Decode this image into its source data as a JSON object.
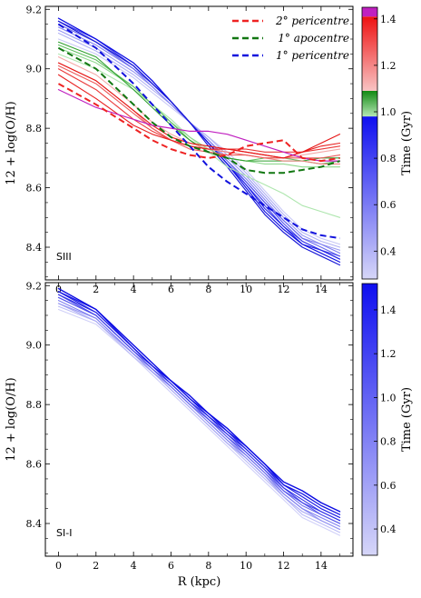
{
  "chart_data": [
    {
      "type": "line",
      "panel_label": "SIII",
      "ylabel": "12 + log(O/H)",
      "xlabel": "",
      "xlim": [
        -0.7,
        15.7
      ],
      "ylim": [
        8.29,
        9.21
      ],
      "x_ticks": [
        0,
        2,
        4,
        6,
        8,
        10,
        12,
        14
      ],
      "y_ticks": [
        8.4,
        8.6,
        8.8,
        9.0,
        9.2
      ],
      "x": [
        0,
        2,
        4,
        5,
        6,
        7,
        8,
        9,
        10,
        11,
        12,
        13,
        14,
        15
      ],
      "legend": {
        "placement": "top-right",
        "entries": [
          {
            "label": "2° pericentre",
            "color": "#ee2222"
          },
          {
            "label": "1° apocentre",
            "color": "#117711"
          },
          {
            "label": "1° pericentre",
            "color": "#1111dd"
          }
        ]
      },
      "colorbar": {
        "label": "Time (Gyr)",
        "ticks": [
          0.4,
          0.6,
          0.8,
          1.0,
          1.2,
          1.4
        ],
        "range": [
          0.28,
          1.45
        ],
        "segments": [
          {
            "from": 0.28,
            "to": 0.98,
            "from_color": "#d6d6f8",
            "to_color": "#0f0ff0"
          },
          {
            "from": 0.98,
            "to": 1.09,
            "from_color": "#b4e6b4",
            "to_color": "#118a11"
          },
          {
            "from": 1.09,
            "to": 1.41,
            "from_color": "#f8c4c4",
            "to_color": "#ee1111"
          },
          {
            "from": 1.41,
            "to": 1.45,
            "from_color": "#c020c0",
            "to_color": "#c020c0"
          }
        ]
      },
      "series": [
        {
          "color": "#c8c8f6",
          "width": 1.1,
          "values": [
            9.1,
            9.05,
            8.97,
            8.92,
            8.87,
            8.82,
            8.77,
            8.72,
            8.66,
            8.59,
            8.52,
            8.46,
            8.43,
            8.41
          ]
        },
        {
          "color": "#b0b0f4",
          "width": 1.1,
          "values": [
            9.12,
            9.06,
            8.98,
            8.93,
            8.88,
            8.82,
            8.77,
            8.71,
            8.65,
            8.58,
            8.51,
            8.45,
            8.42,
            8.4
          ]
        },
        {
          "color": "#9898f2",
          "width": 1.1,
          "values": [
            9.13,
            9.07,
            8.99,
            8.94,
            8.88,
            8.82,
            8.76,
            8.7,
            8.64,
            8.57,
            8.5,
            8.44,
            8.41,
            8.39
          ]
        },
        {
          "color": "#8080f0",
          "width": 1.1,
          "values": [
            9.14,
            9.08,
            9.0,
            8.94,
            8.88,
            8.82,
            8.76,
            8.69,
            8.63,
            8.56,
            8.49,
            8.43,
            8.41,
            8.38
          ]
        },
        {
          "color": "#6868ee",
          "width": 1.1,
          "values": [
            9.15,
            9.09,
            9.0,
            8.95,
            8.89,
            8.82,
            8.75,
            8.69,
            8.62,
            8.55,
            8.49,
            8.43,
            8.4,
            8.37
          ]
        },
        {
          "color": "#5050ec",
          "width": 1.1,
          "values": [
            9.16,
            9.09,
            9.01,
            8.95,
            8.89,
            8.82,
            8.75,
            8.68,
            8.62,
            8.55,
            8.48,
            8.42,
            8.39,
            8.37
          ]
        },
        {
          "color": "#3838ea",
          "width": 1.1,
          "values": [
            9.16,
            9.1,
            9.01,
            8.95,
            8.89,
            8.82,
            8.75,
            8.68,
            8.61,
            8.54,
            8.47,
            8.42,
            8.39,
            8.36
          ]
        },
        {
          "color": "#2020e8",
          "width": 1.1,
          "values": [
            9.17,
            9.1,
            9.02,
            8.96,
            8.89,
            8.82,
            8.75,
            8.68,
            8.61,
            8.53,
            8.47,
            8.41,
            8.39,
            8.36
          ]
        },
        {
          "color": "#1010e4",
          "width": 1.2,
          "values": [
            9.17,
            9.1,
            9.02,
            8.96,
            8.89,
            8.82,
            8.75,
            8.68,
            8.6,
            8.52,
            8.46,
            8.41,
            8.38,
            8.35
          ]
        },
        {
          "color": "#1a1ad8",
          "width": 1.2,
          "values": [
            9.16,
            9.09,
            9.01,
            8.95,
            8.89,
            8.82,
            8.74,
            8.67,
            8.59,
            8.51,
            8.45,
            8.4,
            8.37,
            8.34
          ]
        },
        {
          "color": "#aee6ae",
          "width": 1.1,
          "values": [
            9.05,
            9.0,
            8.93,
            8.88,
            8.83,
            8.77,
            8.72,
            8.67,
            8.64,
            8.61,
            8.58,
            8.54,
            8.52,
            8.5
          ]
        },
        {
          "color": "#8ed88e",
          "width": 1.1,
          "values": [
            9.07,
            9.02,
            8.94,
            8.88,
            8.82,
            8.77,
            8.73,
            8.7,
            8.69,
            8.68,
            8.68,
            8.67,
            8.67,
            8.67
          ]
        },
        {
          "color": "#60c060",
          "width": 1.1,
          "values": [
            9.08,
            9.03,
            8.94,
            8.88,
            8.82,
            8.76,
            8.72,
            8.7,
            8.69,
            8.7,
            8.7,
            8.69,
            8.68,
            8.69
          ]
        },
        {
          "color": "#30a030",
          "width": 1.1,
          "values": [
            9.09,
            9.04,
            8.93,
            8.87,
            8.81,
            8.76,
            8.72,
            8.7,
            8.69,
            8.69,
            8.69,
            8.69,
            8.7,
            8.7
          ]
        },
        {
          "color": "#f4a8a8",
          "width": 1.1,
          "values": [
            9.04,
            8.98,
            8.88,
            8.82,
            8.78,
            8.75,
            8.73,
            8.72,
            8.71,
            8.7,
            8.7,
            8.71,
            8.72,
            8.73
          ]
        },
        {
          "color": "#f08080",
          "width": 1.1,
          "values": [
            9.02,
            8.96,
            8.86,
            8.8,
            8.76,
            8.74,
            8.73,
            8.72,
            8.71,
            8.7,
            8.69,
            8.69,
            8.68,
            8.68
          ]
        },
        {
          "color": "#ec5a5a",
          "width": 1.1,
          "values": [
            9.01,
            8.95,
            8.85,
            8.8,
            8.76,
            8.73,
            8.72,
            8.71,
            8.71,
            8.7,
            8.7,
            8.7,
            8.7,
            8.71
          ]
        },
        {
          "color": "#ea3a3a",
          "width": 1.1,
          "values": [
            9.0,
            8.93,
            8.83,
            8.79,
            8.76,
            8.74,
            8.73,
            8.73,
            8.73,
            8.72,
            8.72,
            8.72,
            8.73,
            8.74
          ]
        },
        {
          "color": "#e82020",
          "width": 1.1,
          "values": [
            8.98,
            8.9,
            8.81,
            8.78,
            8.76,
            8.74,
            8.73,
            8.73,
            8.72,
            8.71,
            8.7,
            8.72,
            8.74,
            8.75
          ]
        },
        {
          "color": "#e61414",
          "width": 1.1,
          "values": [
            9.02,
            8.96,
            8.86,
            8.81,
            8.77,
            8.75,
            8.74,
            8.73,
            8.72,
            8.71,
            8.7,
            8.72,
            8.75,
            8.78
          ]
        },
        {
          "color": "#c020c0",
          "width": 1.2,
          "values": [
            8.93,
            8.87,
            8.83,
            8.81,
            8.8,
            8.79,
            8.79,
            8.78,
            8.76,
            8.74,
            8.72,
            8.7,
            8.69,
            8.69
          ]
        },
        {
          "color": "#1111dd",
          "width": 2.0,
          "dashed": true,
          "values": [
            9.15,
            9.07,
            8.95,
            8.88,
            8.81,
            8.74,
            8.67,
            8.62,
            8.58,
            8.54,
            8.5,
            8.46,
            8.44,
            8.43
          ]
        },
        {
          "color": "#117711",
          "width": 2.0,
          "dashed": true,
          "values": [
            9.07,
            9.0,
            8.88,
            8.82,
            8.77,
            8.74,
            8.72,
            8.7,
            8.66,
            8.65,
            8.65,
            8.66,
            8.67,
            8.69
          ]
        },
        {
          "color": "#ee2222",
          "width": 2.0,
          "dashed": true,
          "values": [
            8.95,
            8.88,
            8.8,
            8.76,
            8.73,
            8.71,
            8.7,
            8.71,
            8.74,
            8.75,
            8.76,
            8.7,
            8.69,
            8.7
          ]
        }
      ]
    },
    {
      "type": "line",
      "panel_label": "SI-I",
      "ylabel": "12 + log(O/H)",
      "xlabel": "R (kpc)",
      "xlim": [
        -0.7,
        15.7
      ],
      "ylim": [
        8.29,
        9.21
      ],
      "x_ticks": [
        0,
        2,
        4,
        6,
        8,
        10,
        12,
        14
      ],
      "y_ticks": [
        8.4,
        8.6,
        8.8,
        9.0,
        9.2
      ],
      "x": [
        0,
        2,
        4,
        5,
        6,
        7,
        8,
        9,
        10,
        11,
        12,
        13,
        14,
        15
      ],
      "colorbar": {
        "label": "Time (Gyr)",
        "ticks": [
          0.4,
          0.6,
          0.8,
          1.0,
          1.2,
          1.4
        ],
        "range": [
          0.28,
          1.52
        ],
        "segments": [
          {
            "from": 0.28,
            "to": 1.52,
            "from_color": "#d6d6f8",
            "to_color": "#0f0ff0"
          }
        ]
      },
      "series": [
        {
          "color": "#d0d0f8",
          "width": 1.1,
          "values": [
            9.12,
            9.07,
            8.96,
            8.9,
            8.84,
            8.78,
            8.72,
            8.66,
            8.6,
            8.54,
            8.48,
            8.42,
            8.39,
            8.36
          ]
        },
        {
          "color": "#bcbcf6",
          "width": 1.1,
          "values": [
            9.13,
            9.08,
            8.96,
            8.91,
            8.85,
            8.79,
            8.73,
            8.67,
            8.61,
            8.55,
            8.49,
            8.43,
            8.4,
            8.37
          ]
        },
        {
          "color": "#a8a8f4",
          "width": 1.1,
          "values": [
            9.14,
            9.08,
            8.97,
            8.91,
            8.85,
            8.79,
            8.73,
            8.67,
            8.62,
            8.56,
            8.49,
            8.44,
            8.41,
            8.38
          ]
        },
        {
          "color": "#9494f2",
          "width": 1.1,
          "values": [
            9.14,
            9.09,
            8.97,
            8.91,
            8.86,
            8.8,
            8.74,
            8.68,
            8.62,
            8.56,
            8.5,
            8.45,
            8.41,
            8.38
          ]
        },
        {
          "color": "#8080f0",
          "width": 1.1,
          "values": [
            9.15,
            9.09,
            8.97,
            8.92,
            8.86,
            8.8,
            8.74,
            8.68,
            8.63,
            8.57,
            8.5,
            8.45,
            8.42,
            8.39
          ]
        },
        {
          "color": "#6c6cee",
          "width": 1.1,
          "values": [
            9.16,
            9.1,
            8.98,
            8.92,
            8.86,
            8.8,
            8.75,
            8.69,
            8.63,
            8.57,
            8.51,
            8.46,
            8.43,
            8.4
          ]
        },
        {
          "color": "#5858ec",
          "width": 1.1,
          "values": [
            9.16,
            9.1,
            8.98,
            8.92,
            8.87,
            8.81,
            8.75,
            8.69,
            8.64,
            8.58,
            8.51,
            8.47,
            8.43,
            8.4
          ]
        },
        {
          "color": "#4444ea",
          "width": 1.1,
          "values": [
            9.17,
            9.1,
            8.98,
            8.93,
            8.87,
            8.81,
            8.75,
            8.7,
            8.64,
            8.58,
            8.52,
            8.47,
            8.44,
            8.41
          ]
        },
        {
          "color": "#3030e8",
          "width": 1.1,
          "values": [
            9.17,
            9.11,
            8.99,
            8.93,
            8.87,
            8.81,
            8.76,
            8.7,
            8.65,
            8.59,
            8.52,
            8.48,
            8.44,
            8.41
          ]
        },
        {
          "color": "#2020e6",
          "width": 1.2,
          "values": [
            9.18,
            9.11,
            8.99,
            8.93,
            8.88,
            8.82,
            8.76,
            8.71,
            8.65,
            8.59,
            8.53,
            8.49,
            8.45,
            8.42
          ]
        },
        {
          "color": "#1414e4",
          "width": 1.3,
          "values": [
            9.18,
            9.12,
            8.99,
            8.93,
            8.88,
            8.82,
            8.77,
            8.71,
            8.66,
            8.6,
            8.53,
            8.5,
            8.46,
            8.43
          ]
        },
        {
          "color": "#0a0ae2",
          "width": 1.4,
          "values": [
            9.19,
            9.12,
            9.0,
            8.94,
            8.88,
            8.83,
            8.77,
            8.72,
            8.66,
            8.6,
            8.54,
            8.51,
            8.47,
            8.44
          ]
        }
      ]
    }
  ]
}
